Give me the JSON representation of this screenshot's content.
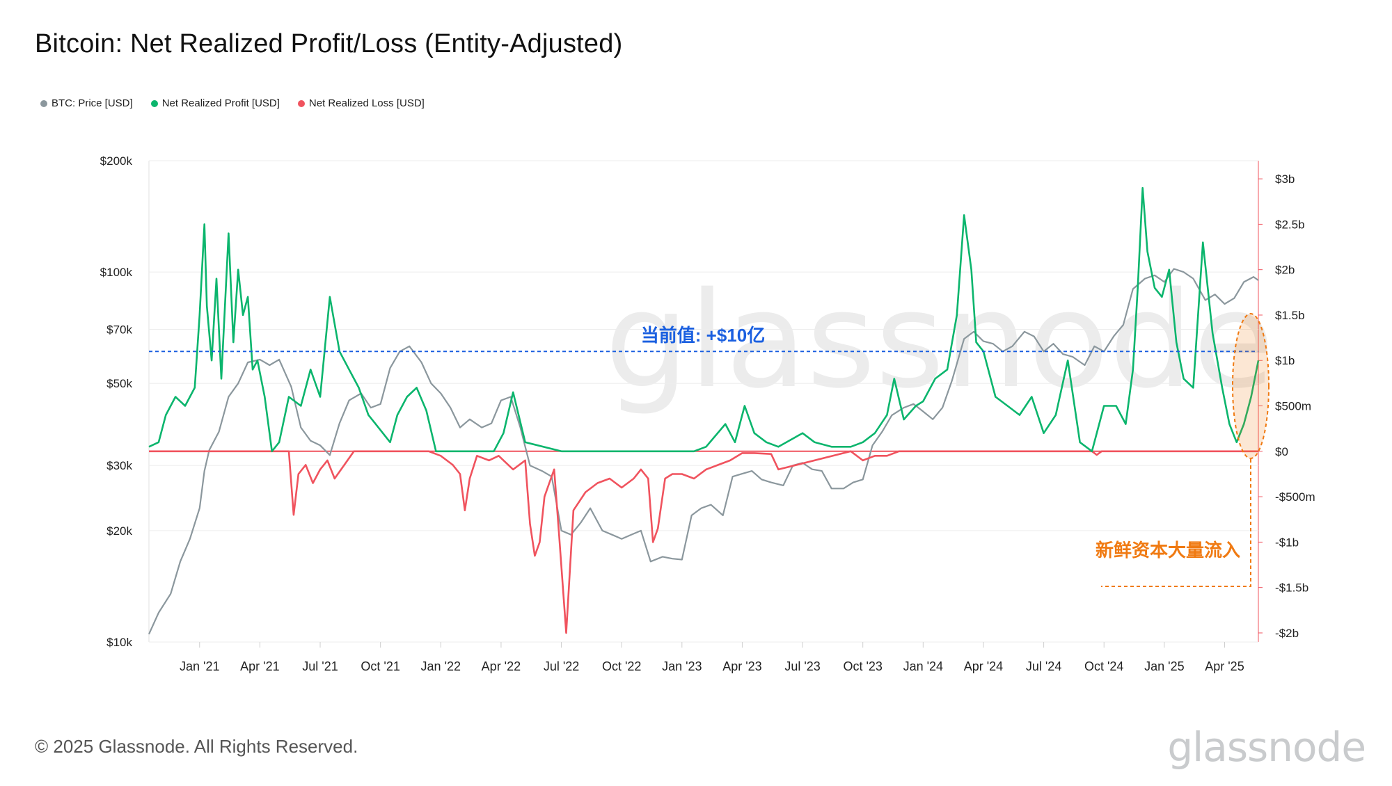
{
  "title": "Bitcoin: Net Realized Profit/Loss (Entity-Adjusted)",
  "legend": [
    {
      "label": "BTC: Price [USD]",
      "color": "#8b979d"
    },
    {
      "label": "Net Realized Profit [USD]",
      "color": "#0bb56d"
    },
    {
      "label": "Net Realized Loss [USD]",
      "color": "#f0535e"
    }
  ],
  "footer": "© 2025 Glassnode. All Rights Reserved.",
  "brand": "glassnode",
  "annotations": {
    "current_value": "当前值: +$10亿",
    "current_value_color": "#1a5fe0",
    "inflow": "新鲜资本大量流入",
    "inflow_color": "#f07a12"
  },
  "chart_data": {
    "type": "line",
    "x_ticks": [
      "Jan '21",
      "Apr '21",
      "Jul '21",
      "Oct '21",
      "Jan '22",
      "Apr '22",
      "Jul '22",
      "Oct '22",
      "Jan '23",
      "Apr '23",
      "Jul '23",
      "Oct '23",
      "Jan '24",
      "Apr '24",
      "Jul '24",
      "Oct '24",
      "Jan '25",
      "Apr '25"
    ],
    "x_range": [
      2020.79,
      2025.39
    ],
    "left_axis": {
      "scale": "log",
      "ylim": [
        10000,
        200000
      ],
      "ticks": [
        {
          "v": 10000,
          "label": "$10k"
        },
        {
          "v": 20000,
          "label": "$20k"
        },
        {
          "v": 30000,
          "label": "$30k"
        },
        {
          "v": 50000,
          "label": "$50k"
        },
        {
          "v": 70000,
          "label": "$70k"
        },
        {
          "v": 100000,
          "label": "$100k"
        },
        {
          "v": 200000,
          "label": "$200k"
        }
      ]
    },
    "right_axis": {
      "scale": "linear",
      "ylim": [
        -2100000000,
        3200000000
      ],
      "ticks": [
        {
          "v": 3000000000,
          "label": "$3b"
        },
        {
          "v": 2500000000,
          "label": "$2.5b"
        },
        {
          "v": 2000000000,
          "label": "$2b"
        },
        {
          "v": 1500000000,
          "label": "$1.5b"
        },
        {
          "v": 1000000000,
          "label": "$1b"
        },
        {
          "v": 500000000,
          "label": "$500m"
        },
        {
          "v": 0,
          "label": "$0"
        },
        {
          "v": -500000000,
          "label": "-$500m"
        },
        {
          "v": -1000000000,
          "label": "-$1b"
        },
        {
          "v": -1500000000,
          "label": "-$1.5b"
        },
        {
          "v": -2000000000,
          "label": "-$2b"
        }
      ]
    },
    "current_value_level": 1100000000,
    "series": [
      {
        "name": "BTC: Price [USD]",
        "axis": "left",
        "color": "#8b979d",
        "x": [
          2020.79,
          2020.83,
          2020.88,
          2020.92,
          2020.96,
          2021.0,
          2021.02,
          2021.04,
          2021.08,
          2021.12,
          2021.16,
          2021.2,
          2021.25,
          2021.29,
          2021.33,
          2021.38,
          2021.42,
          2021.46,
          2021.5,
          2021.54,
          2021.58,
          2021.62,
          2021.67,
          2021.71,
          2021.75,
          2021.79,
          2021.83,
          2021.87,
          2021.92,
          2021.96,
          2022.0,
          2022.04,
          2022.08,
          2022.12,
          2022.17,
          2022.21,
          2022.25,
          2022.29,
          2022.33,
          2022.37,
          2022.42,
          2022.46,
          2022.5,
          2022.54,
          2022.58,
          2022.62,
          2022.67,
          2022.71,
          2022.75,
          2022.79,
          2022.83,
          2022.87,
          2022.92,
          2022.96,
          2023.0,
          2023.04,
          2023.08,
          2023.12,
          2023.17,
          2023.21,
          2023.25,
          2023.29,
          2023.33,
          2023.37,
          2023.42,
          2023.46,
          2023.5,
          2023.54,
          2023.58,
          2023.62,
          2023.67,
          2023.71,
          2023.75,
          2023.79,
          2023.83,
          2023.87,
          2023.92,
          2023.96,
          2024.0,
          2024.04,
          2024.08,
          2024.12,
          2024.17,
          2024.21,
          2024.25,
          2024.29,
          2024.33,
          2024.37,
          2024.42,
          2024.46,
          2024.5,
          2024.54,
          2024.58,
          2024.62,
          2024.67,
          2024.71,
          2024.75,
          2024.79,
          2024.83,
          2024.87,
          2024.92,
          2024.96,
          2025.0,
          2025.04,
          2025.08,
          2025.12,
          2025.17,
          2025.21,
          2025.25,
          2025.29,
          2025.33,
          2025.37,
          2025.39
        ],
        "values": [
          10500,
          12000,
          13500,
          16500,
          19000,
          23000,
          29000,
          33000,
          37000,
          46000,
          50000,
          57000,
          58000,
          56000,
          58000,
          49000,
          38000,
          35000,
          34000,
          32000,
          39000,
          45000,
          47000,
          43000,
          44000,
          55000,
          61000,
          63000,
          57000,
          50000,
          47000,
          43000,
          38000,
          40000,
          38000,
          39000,
          45000,
          46000,
          38000,
          30000,
          29000,
          28000,
          20000,
          19500,
          21000,
          23000,
          20000,
          19500,
          19000,
          19500,
          20000,
          16500,
          17000,
          16800,
          16700,
          22000,
          23000,
          23500,
          22000,
          28000,
          28500,
          29000,
          27500,
          27000,
          26500,
          30000,
          30500,
          29300,
          29000,
          26000,
          26000,
          27000,
          27500,
          34000,
          37000,
          41000,
          43000,
          44000,
          42000,
          40000,
          43000,
          51000,
          66000,
          69000,
          65000,
          64000,
          61000,
          63000,
          69000,
          67000,
          61000,
          64000,
          60000,
          59000,
          56000,
          63000,
          61000,
          67000,
          72000,
          90000,
          96000,
          98000,
          94000,
          102000,
          100000,
          96000,
          84000,
          87000,
          82000,
          85000,
          94000,
          97000,
          95000
        ]
      },
      {
        "name": "Net Realized Profit [USD]",
        "axis": "right",
        "color": "#0bb56d",
        "x": [
          2020.79,
          2020.83,
          2020.86,
          2020.9,
          2020.94,
          2020.98,
          2021.0,
          2021.02,
          2021.03,
          2021.05,
          2021.07,
          2021.09,
          2021.12,
          2021.14,
          2021.16,
          2021.18,
          2021.2,
          2021.22,
          2021.24,
          2021.27,
          2021.3,
          2021.33,
          2021.37,
          2021.42,
          2021.46,
          2021.5,
          2021.54,
          2021.58,
          2021.62,
          2021.66,
          2021.7,
          2021.73,
          2021.76,
          2021.79,
          2021.82,
          2021.86,
          2021.9,
          2021.94,
          2021.98,
          2022.1,
          2022.22,
          2022.26,
          2022.3,
          2022.35,
          2022.5,
          2022.7,
          2022.9,
          2023.05,
          2023.1,
          2023.18,
          2023.22,
          2023.26,
          2023.3,
          2023.35,
          2023.4,
          2023.5,
          2023.55,
          2023.62,
          2023.7,
          2023.75,
          2023.8,
          2023.85,
          2023.88,
          2023.92,
          2023.97,
          2024.0,
          2024.05,
          2024.1,
          2024.14,
          2024.17,
          2024.2,
          2024.22,
          2024.25,
          2024.3,
          2024.35,
          2024.4,
          2024.45,
          2024.5,
          2024.55,
          2024.6,
          2024.65,
          2024.7,
          2024.75,
          2024.8,
          2024.84,
          2024.87,
          2024.89,
          2024.91,
          2024.93,
          2024.96,
          2024.99,
          2025.02,
          2025.05,
          2025.08,
          2025.12,
          2025.16,
          2025.2,
          2025.24,
          2025.27,
          2025.3,
          2025.33,
          2025.36,
          2025.39
        ],
        "values": [
          50000000,
          100000000,
          400000000,
          600000000,
          500000000,
          700000000,
          1500000000,
          2500000000,
          1600000000,
          1000000000,
          1900000000,
          800000000,
          2400000000,
          1200000000,
          2000000000,
          1500000000,
          1700000000,
          900000000,
          1000000000,
          600000000,
          0,
          100000000,
          600000000,
          500000000,
          900000000,
          600000000,
          1700000000,
          1100000000,
          900000000,
          700000000,
          400000000,
          300000000,
          200000000,
          100000000,
          400000000,
          600000000,
          700000000,
          450000000,
          0,
          0,
          0,
          200000000,
          650000000,
          100000000,
          0,
          0,
          0,
          0,
          50000000,
          300000000,
          100000000,
          500000000,
          200000000,
          100000000,
          50000000,
          200000000,
          100000000,
          50000000,
          50000000,
          100000000,
          200000000,
          400000000,
          800000000,
          350000000,
          500000000,
          550000000,
          800000000,
          900000000,
          1500000000,
          2600000000,
          2000000000,
          1200000000,
          1100000000,
          600000000,
          500000000,
          400000000,
          600000000,
          200000000,
          400000000,
          1000000000,
          100000000,
          0,
          500000000,
          500000000,
          300000000,
          900000000,
          1800000000,
          2900000000,
          2200000000,
          1800000000,
          1700000000,
          2000000000,
          1200000000,
          800000000,
          700000000,
          2300000000,
          1300000000,
          700000000,
          300000000,
          100000000,
          300000000,
          600000000,
          1000000000
        ]
      },
      {
        "name": "Net Realized Loss [USD]",
        "axis": "right",
        "color": "#f0535e",
        "x": [
          2020.79,
          2021.37,
          2021.39,
          2021.41,
          2021.44,
          2021.47,
          2021.5,
          2021.53,
          2021.56,
          2021.6,
          2021.64,
          2021.95,
          2022.0,
          2022.05,
          2022.08,
          2022.1,
          2022.12,
          2022.15,
          2022.2,
          2022.24,
          2022.3,
          2022.35,
          2022.37,
          2022.39,
          2022.41,
          2022.43,
          2022.45,
          2022.47,
          2022.49,
          2022.52,
          2022.55,
          2022.6,
          2022.65,
          2022.7,
          2022.75,
          2022.8,
          2022.83,
          2022.86,
          2022.88,
          2022.9,
          2022.93,
          2022.96,
          2023.0,
          2023.05,
          2023.1,
          2023.15,
          2023.2,
          2023.25,
          2023.3,
          2023.37,
          2023.4,
          2023.7,
          2023.75,
          2023.8,
          2023.85,
          2023.9,
          2024.0,
          2024.7,
          2024.72,
          2024.74,
          2025.39
        ],
        "values": [
          0,
          0,
          -700000000,
          -250000000,
          -150000000,
          -350000000,
          -200000000,
          -100000000,
          -300000000,
          -150000000,
          0,
          0,
          -50000000,
          -150000000,
          -250000000,
          -650000000,
          -300000000,
          -50000000,
          -100000000,
          -50000000,
          -200000000,
          -100000000,
          -800000000,
          -1150000000,
          -1000000000,
          -500000000,
          -350000000,
          -200000000,
          -900000000,
          -2000000000,
          -650000000,
          -450000000,
          -350000000,
          -300000000,
          -400000000,
          -300000000,
          -200000000,
          -300000000,
          -1000000000,
          -850000000,
          -300000000,
          -250000000,
          -250000000,
          -300000000,
          -200000000,
          -150000000,
          -100000000,
          -20000000,
          -20000000,
          -30000000,
          -200000000,
          0,
          -100000000,
          -50000000,
          -50000000,
          0,
          0,
          0,
          -40000000,
          0,
          0
        ]
      }
    ]
  }
}
